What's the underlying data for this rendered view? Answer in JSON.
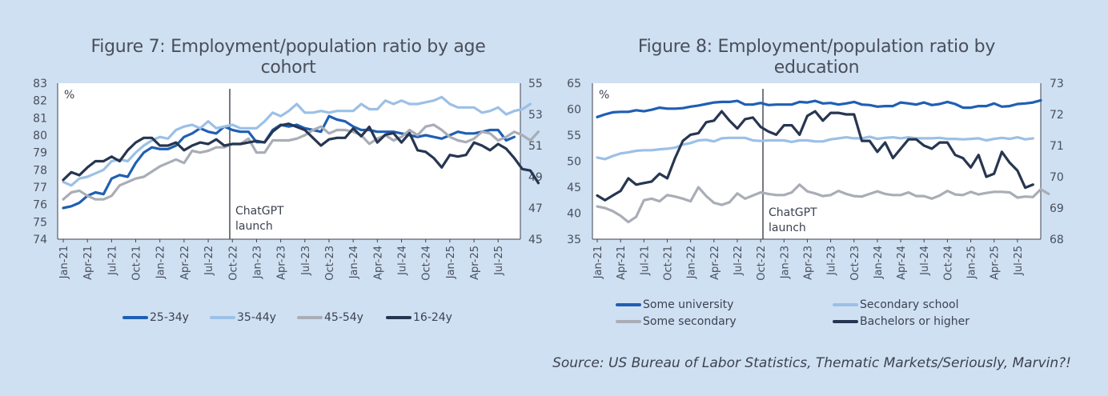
{
  "source": "Source: US Bureau of Labor Statistics, Thematic Markets/Seriously, Marvin?!",
  "chart_data": [
    {
      "type": "line",
      "title": "Figure 7: Employment/population ratio by age cohort",
      "title_lines": [
        "Figure 7: Employment/population ratio by age",
        "cohort"
      ],
      "unit_label": "%",
      "annotation": {
        "text_lines": [
          "ChatGPT",
          "launch"
        ],
        "x": "Nov-22"
      },
      "x_start": "Jan-21",
      "x_ticks": [
        "Jan-21",
        "Apr-21",
        "Jul-21",
        "Oct-21",
        "Jan-22",
        "Apr-22",
        "Jul-22",
        "Oct-22",
        "Jan-23",
        "Apr-23",
        "Jul-23",
        "Oct-23",
        "Jan-24",
        "Apr-24",
        "Jul-24",
        "Oct-24",
        "Jan-25",
        "Apr-25",
        "Jul-25"
      ],
      "y_left": {
        "min": 74,
        "max": 83,
        "step": 1
      },
      "y_right": {
        "min": 45,
        "max": 55,
        "step": 2
      },
      "grid": false,
      "legend_position": "bottom",
      "series": [
        {
          "name": "25-34y",
          "axis": "left",
          "color": "#1f5fb4",
          "values": [
            75.8,
            75.9,
            76.1,
            76.5,
            76.7,
            76.6,
            77.5,
            77.7,
            77.6,
            78.4,
            79.0,
            79.3,
            79.2,
            79.2,
            79.4,
            79.9,
            80.1,
            80.4,
            80.2,
            80.1,
            80.5,
            80.3,
            80.2,
            80.2,
            79.6,
            79.6,
            80.3,
            80.6,
            80.5,
            80.6,
            80.4,
            80.3,
            80.2,
            81.1,
            80.9,
            80.8,
            80.5,
            80.3,
            80.3,
            80.2,
            80.2,
            80.2,
            80.1,
            80.0,
            79.9,
            80.0,
            79.9,
            79.8,
            80.0,
            80.2,
            80.1,
            80.1,
            80.2,
            80.3,
            80.3,
            79.7,
            79.9
          ]
        },
        {
          "name": "35-44y",
          "axis": "left",
          "color": "#9cc0e6",
          "values": [
            77.3,
            77.1,
            77.5,
            77.6,
            77.8,
            78.0,
            78.5,
            78.6,
            78.5,
            79.0,
            79.4,
            79.7,
            79.9,
            79.8,
            80.3,
            80.5,
            80.6,
            80.4,
            80.8,
            80.4,
            80.5,
            80.6,
            80.4,
            80.4,
            80.4,
            80.8,
            81.3,
            81.1,
            81.4,
            81.8,
            81.3,
            81.3,
            81.4,
            81.3,
            81.4,
            81.4,
            81.4,
            81.8,
            81.5,
            81.5,
            82.0,
            81.8,
            82.0,
            81.8,
            81.8,
            81.9,
            82.0,
            82.2,
            81.8,
            81.6,
            81.6,
            81.6,
            81.3,
            81.4,
            81.6,
            81.2,
            81.4,
            81.5,
            81.8
          ]
        },
        {
          "name": "45-54y",
          "axis": "left",
          "color": "#a9adb6",
          "values": [
            76.3,
            76.7,
            76.8,
            76.5,
            76.3,
            76.3,
            76.5,
            77.1,
            77.3,
            77.5,
            77.6,
            77.9,
            78.2,
            78.4,
            78.6,
            78.4,
            79.1,
            79.0,
            79.1,
            79.3,
            79.3,
            79.5,
            79.5,
            79.8,
            79.0,
            79.0,
            79.7,
            79.7,
            79.7,
            79.8,
            80.0,
            80.3,
            80.5,
            80.1,
            80.3,
            80.3,
            80.2,
            80.0,
            79.5,
            79.8,
            80.0,
            79.7,
            79.9,
            80.3,
            80.0,
            80.5,
            80.6,
            80.3,
            79.9,
            79.7,
            79.6,
            79.8,
            80.2,
            80.1,
            79.7,
            79.9,
            80.2,
            80.0,
            79.7,
            80.2
          ]
        },
        {
          "name": "16-24y",
          "axis": "right",
          "color": "#273650",
          "values": [
            48.8,
            49.3,
            49.1,
            49.6,
            50.0,
            50.0,
            50.3,
            50.0,
            50.7,
            51.2,
            51.5,
            51.5,
            51.0,
            51.0,
            51.2,
            50.7,
            51.0,
            51.2,
            51.1,
            51.4,
            51.0,
            51.1,
            51.1,
            51.2,
            51.3,
            51.2,
            51.9,
            52.3,
            52.4,
            52.2,
            52.0,
            51.5,
            51.0,
            51.4,
            51.5,
            51.5,
            52.1,
            51.6,
            52.2,
            51.2,
            51.7,
            51.8,
            51.2,
            51.8,
            50.7,
            50.6,
            50.2,
            49.6,
            50.4,
            50.3,
            50.4,
            51.2,
            51.0,
            50.7,
            51.1,
            50.8,
            50.2,
            49.5,
            49.4,
            48.6
          ]
        }
      ]
    },
    {
      "type": "line",
      "title": "Figure 8: Employment/population ratio by education",
      "title_lines": [
        "Figure 8: Employment/population ratio by",
        "education"
      ],
      "unit_label": "%",
      "annotation": {
        "text_lines": [
          "ChatGPT",
          "launch"
        ],
        "x": "Nov-22"
      },
      "x_start": "Jan-21",
      "x_ticks": [
        "Jan-21",
        "Apr-21",
        "Jul-21",
        "Oct-21",
        "Jan-22",
        "Apr-22",
        "Jul-22",
        "Oct-22",
        "Jan-23",
        "Apr-23",
        "Jul-23",
        "Oct-23",
        "Jan-24",
        "Apr-24",
        "Jul-24",
        "Oct-24",
        "Jan-25",
        "Apr-25",
        "Jul-25"
      ],
      "y_left": {
        "min": 35,
        "max": 65,
        "step": 5
      },
      "y_right": {
        "min": 68,
        "max": 73,
        "step": 1
      },
      "grid": false,
      "legend_position": "bottom",
      "series": [
        {
          "name": "Some university",
          "axis": "left",
          "color": "#1f5fb4",
          "values": [
            58.5,
            59.0,
            59.4,
            59.5,
            59.5,
            59.8,
            59.6,
            59.9,
            60.3,
            60.1,
            60.1,
            60.2,
            60.5,
            60.7,
            61.0,
            61.3,
            61.4,
            61.4,
            61.6,
            60.9,
            60.9,
            61.2,
            60.8,
            60.9,
            60.9,
            60.9,
            61.4,
            61.3,
            61.6,
            61.1,
            61.2,
            60.9,
            61.1,
            61.4,
            60.9,
            60.8,
            60.5,
            60.6,
            60.6,
            61.3,
            61.1,
            60.9,
            61.3,
            60.8,
            61.0,
            61.4,
            61.0,
            60.3,
            60.3,
            60.6,
            60.6,
            61.1,
            60.5,
            60.6,
            61.0,
            61.1,
            61.3,
            61.7
          ]
        },
        {
          "name": "Secondary school",
          "axis": "left",
          "color": "#9cc0e6",
          "values": [
            50.7,
            50.4,
            51.0,
            51.5,
            51.7,
            52.0,
            52.1,
            52.1,
            52.3,
            52.4,
            52.6,
            53.2,
            53.5,
            54.0,
            54.1,
            53.8,
            54.4,
            54.5,
            54.5,
            54.5,
            54.0,
            53.9,
            54.0,
            54.0,
            54.0,
            53.7,
            54.0,
            54.0,
            53.8,
            53.8,
            54.2,
            54.4,
            54.6,
            54.4,
            54.4,
            54.7,
            54.3,
            54.5,
            54.6,
            54.4,
            54.6,
            54.4,
            54.4,
            54.4,
            54.5,
            54.3,
            54.3,
            54.2,
            54.3,
            54.4,
            54.0,
            54.3,
            54.5,
            54.3,
            54.6,
            54.2,
            54.4
          ]
        },
        {
          "name": "Some secondary",
          "axis": "left",
          "color": "#a9adb6",
          "values": [
            41.3,
            41.0,
            40.4,
            39.5,
            38.3,
            39.3,
            42.5,
            42.8,
            42.3,
            43.5,
            43.2,
            42.8,
            42.3,
            45.0,
            43.3,
            42.0,
            41.6,
            42.1,
            43.8,
            42.8,
            43.4,
            44.0,
            43.7,
            43.5,
            43.5,
            44.0,
            45.5,
            44.2,
            43.8,
            43.3,
            43.5,
            44.3,
            43.7,
            43.3,
            43.2,
            43.7,
            44.2,
            43.7,
            43.5,
            43.5,
            44.0,
            43.3,
            43.3,
            42.8,
            43.4,
            44.3,
            43.6,
            43.5,
            44.1,
            43.6,
            43.9,
            44.1,
            44.1,
            44.0,
            43.0,
            43.2,
            43.1,
            44.6,
            43.7
          ]
        },
        {
          "name": "Bachelors or higher",
          "axis": "right",
          "color": "#273650",
          "values": [
            69.4,
            69.25,
            69.4,
            69.55,
            69.95,
            69.75,
            69.8,
            69.85,
            70.1,
            69.95,
            70.6,
            71.15,
            71.35,
            71.4,
            71.75,
            71.8,
            72.1,
            71.8,
            71.55,
            71.85,
            71.9,
            71.6,
            71.45,
            71.35,
            71.65,
            71.65,
            71.35,
            71.95,
            72.1,
            71.8,
            72.05,
            72.05,
            72.0,
            72.0,
            71.15,
            71.15,
            70.8,
            71.1,
            70.6,
            70.9,
            71.2,
            71.2,
            71.0,
            70.9,
            71.1,
            71.1,
            70.7,
            70.6,
            70.3,
            70.7,
            70.0,
            70.1,
            70.8,
            70.45,
            70.2,
            69.65,
            69.75
          ]
        }
      ]
    }
  ]
}
